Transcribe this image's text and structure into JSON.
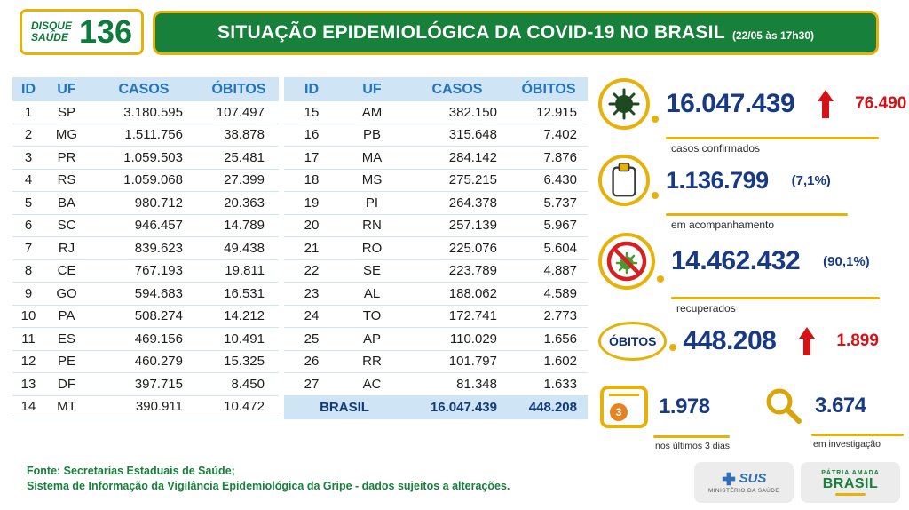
{
  "header": {
    "logo_line1": "DISQUE",
    "logo_line2": "SAÚDE",
    "logo_number": "136",
    "title": "SITUAÇÃO EPIDEMIOLÓGICA DA COVID-19 NO BRASIL",
    "timestamp": "(22/05 às 17h30)"
  },
  "tables": {
    "columns": [
      "ID",
      "UF",
      "CASOS",
      "ÓBITOS"
    ],
    "left_rows": [
      [
        "1",
        "SP",
        "3.180.595",
        "107.497"
      ],
      [
        "2",
        "MG",
        "1.511.756",
        "38.878"
      ],
      [
        "3",
        "PR",
        "1.059.503",
        "25.481"
      ],
      [
        "4",
        "RS",
        "1.059.068",
        "27.399"
      ],
      [
        "5",
        "BA",
        "980.712",
        "20.363"
      ],
      [
        "6",
        "SC",
        "946.457",
        "14.789"
      ],
      [
        "7",
        "RJ",
        "839.623",
        "49.438"
      ],
      [
        "8",
        "CE",
        "767.193",
        "19.811"
      ],
      [
        "9",
        "GO",
        "594.683",
        "16.531"
      ],
      [
        "10",
        "PA",
        "508.274",
        "14.212"
      ],
      [
        "11",
        "ES",
        "469.156",
        "10.491"
      ],
      [
        "12",
        "PE",
        "460.279",
        "15.325"
      ],
      [
        "13",
        "DF",
        "397.715",
        "8.450"
      ],
      [
        "14",
        "MT",
        "390.911",
        "10.472"
      ]
    ],
    "right_rows": [
      [
        "15",
        "AM",
        "382.150",
        "12.915"
      ],
      [
        "16",
        "PB",
        "315.648",
        "7.402"
      ],
      [
        "17",
        "MA",
        "284.142",
        "7.876"
      ],
      [
        "18",
        "MS",
        "275.215",
        "6.430"
      ],
      [
        "19",
        "PI",
        "264.378",
        "5.737"
      ],
      [
        "20",
        "RN",
        "257.139",
        "5.967"
      ],
      [
        "21",
        "RO",
        "225.076",
        "5.604"
      ],
      [
        "22",
        "SE",
        "223.789",
        "4.887"
      ],
      [
        "23",
        "AL",
        "188.062",
        "4.589"
      ],
      [
        "24",
        "TO",
        "172.741",
        "2.773"
      ],
      [
        "25",
        "AP",
        "110.029",
        "1.656"
      ],
      [
        "26",
        "RR",
        "101.797",
        "1.602"
      ],
      [
        "27",
        "AC",
        "81.348",
        "1.633"
      ]
    ],
    "total": {
      "label": "BRASIL",
      "casos": "16.047.439",
      "obitos": "448.208"
    }
  },
  "stats": {
    "confirmed": {
      "value": "16.047.439",
      "delta": "76.490",
      "label": "casos confirmados"
    },
    "monitoring": {
      "value": "1.136.799",
      "pct": "(7,1%)",
      "label": "em acompanhamento"
    },
    "recovered": {
      "value": "14.462.432",
      "pct": "(90,1%)",
      "label": "recuperados"
    },
    "deaths": {
      "title": "ÓBITOS",
      "value": "448.208",
      "delta": "1.899"
    },
    "recent": {
      "value": "1.978",
      "label": "nos últimos 3 dias",
      "icon_badge": "3"
    },
    "investigation": {
      "value": "3.674",
      "label": "em investigação"
    }
  },
  "footer": {
    "line1": "Fonte: Secretarias Estaduais de Saúde;",
    "line2": "Sistema de Informação da Vigilância Epidemiológica da Gripe - dados sujeitos a alterações.",
    "sus": "SUS",
    "ministry": "MINISTÉRIO DA SAÚDE",
    "patria": "PÁTRIA AMADA",
    "brasil": "BRASIL"
  },
  "colors": {
    "green": "#17803b",
    "gold": "#e6b209",
    "header_blue": "#2373bd",
    "navy": "#183a85",
    "red": "#d51317",
    "light_blue": "#cfe4f4"
  },
  "chart_data": {
    "type": "table",
    "title": "SITUAÇÃO EPIDEMIOLÓGICA DA COVID-19 NO BRASIL (22/05 às 17h30)",
    "columns": [
      "ID",
      "UF",
      "CASOS",
      "ÓBITOS"
    ],
    "rows": [
      [
        1,
        "SP",
        3180595,
        107497
      ],
      [
        2,
        "MG",
        1511756,
        38878
      ],
      [
        3,
        "PR",
        1059503,
        25481
      ],
      [
        4,
        "RS",
        1059068,
        27399
      ],
      [
        5,
        "BA",
        980712,
        20363
      ],
      [
        6,
        "SC",
        946457,
        14789
      ],
      [
        7,
        "RJ",
        839623,
        49438
      ],
      [
        8,
        "CE",
        767193,
        19811
      ],
      [
        9,
        "GO",
        594683,
        16531
      ],
      [
        10,
        "PA",
        508274,
        14212
      ],
      [
        11,
        "ES",
        469156,
        10491
      ],
      [
        12,
        "PE",
        460279,
        15325
      ],
      [
        13,
        "DF",
        397715,
        8450
      ],
      [
        14,
        "MT",
        390911,
        10472
      ],
      [
        15,
        "AM",
        382150,
        12915
      ],
      [
        16,
        "PB",
        315648,
        7402
      ],
      [
        17,
        "MA",
        284142,
        7876
      ],
      [
        18,
        "MS",
        275215,
        6430
      ],
      [
        19,
        "PI",
        264378,
        5737
      ],
      [
        20,
        "RN",
        257139,
        5967
      ],
      [
        21,
        "RO",
        225076,
        5604
      ],
      [
        22,
        "SE",
        223789,
        4887
      ],
      [
        23,
        "AL",
        188062,
        4589
      ],
      [
        24,
        "TO",
        172741,
        2773
      ],
      [
        25,
        "AP",
        110029,
        1656
      ],
      [
        26,
        "RR",
        101797,
        1602
      ],
      [
        27,
        "AC",
        81348,
        1633
      ]
    ],
    "total_row": {
      "label": "BRASIL",
      "casos": 16047439,
      "obitos": 448208
    },
    "summary": {
      "casos_confirmados": 16047439,
      "novos_casos": 76490,
      "em_acompanhamento": 1136799,
      "em_acompanhamento_pct": "7,1%",
      "recuperados": 14462432,
      "recuperados_pct": "90,1%",
      "obitos": 448208,
      "novos_obitos": 1899,
      "obitos_ultimos_3_dias": 1978,
      "obitos_em_investigacao": 3674
    }
  }
}
